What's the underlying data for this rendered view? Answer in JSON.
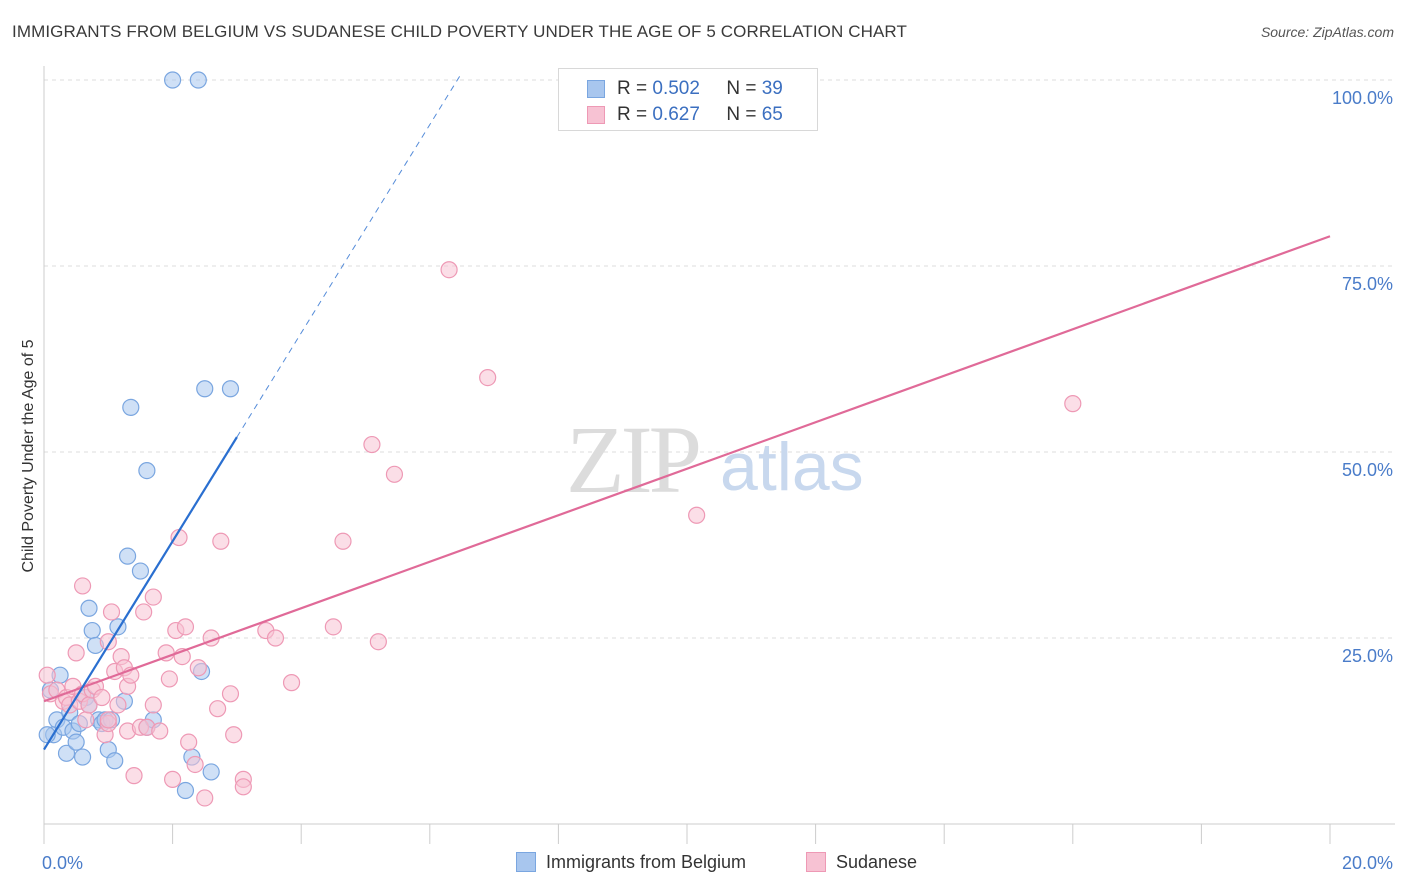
{
  "title": "IMMIGRANTS FROM BELGIUM VS SUDANESE CHILD POVERTY UNDER THE AGE OF 5 CORRELATION CHART",
  "source": "Source: ZipAtlas.com",
  "watermark": {
    "zip": "ZIP",
    "atlas": "atlas"
  },
  "legend": {
    "r_label": "R =",
    "n_label": "N =",
    "rows": [
      {
        "r": "0.502",
        "n": "39"
      },
      {
        "r": "0.627",
        "n": "65"
      }
    ]
  },
  "colors": {
    "belgium_fill": "#a8c6ee",
    "belgium_stroke": "#7aa6e0",
    "belgium_line": "#2a6fd0",
    "sudanese_fill": "#f7c2d3",
    "sudanese_stroke": "#ee99b5",
    "sudanese_line": "#e06a98",
    "tick_text": "#4a7cc9",
    "grid": "#dcdcdc"
  },
  "chart_data": {
    "type": "scatter",
    "title": "IMMIGRANTS FROM BELGIUM VS SUDANESE CHILD POVERTY UNDER THE AGE OF 5 CORRELATION CHART",
    "xlabel": "",
    "ylabel": "Child Poverty Under the Age of 5",
    "xlim": [
      0,
      20
    ],
    "ylim": [
      0,
      100
    ],
    "x_tick_labels": [
      "0.0%",
      "20.0%"
    ],
    "y_tick_labels": [
      "100.0%",
      "75.0%",
      "50.0%",
      "25.0%"
    ],
    "y_ticks": [
      100,
      75,
      50,
      25
    ],
    "x_minor_ticks": [
      0,
      2,
      4,
      6,
      8,
      10,
      12,
      14,
      16,
      18,
      20
    ],
    "grid": true,
    "series": [
      {
        "name": "Immigrants from Belgium",
        "r": 0.502,
        "n": 39,
        "trend": {
          "x": [
            0.0,
            3.0
          ],
          "y": [
            10.0,
            52.0
          ],
          "dash_to": [
            6.5,
            101
          ]
        },
        "points": [
          [
            0.1,
            18.0
          ],
          [
            0.15,
            12.0
          ],
          [
            0.2,
            14.0
          ],
          [
            0.25,
            20.0
          ],
          [
            0.3,
            13.0
          ],
          [
            0.35,
            9.5
          ],
          [
            0.4,
            15.0
          ],
          [
            0.45,
            12.5
          ],
          [
            0.5,
            11.0
          ],
          [
            0.55,
            13.5
          ],
          [
            0.6,
            9.0
          ],
          [
            0.65,
            17.0
          ],
          [
            0.7,
            16.0
          ],
          [
            0.7,
            29.0
          ],
          [
            0.75,
            26.0
          ],
          [
            0.8,
            24.0
          ],
          [
            0.85,
            14.0
          ],
          [
            0.9,
            13.5
          ],
          [
            0.95,
            14.0
          ],
          [
            1.0,
            10.0
          ],
          [
            1.1,
            8.5
          ],
          [
            1.15,
            26.5
          ],
          [
            1.25,
            16.5
          ],
          [
            1.3,
            36.0
          ],
          [
            1.35,
            56.0
          ],
          [
            1.5,
            34.0
          ],
          [
            1.6,
            13.0
          ],
          [
            1.6,
            47.5
          ],
          [
            1.7,
            14.0
          ],
          [
            2.0,
            100
          ],
          [
            2.2,
            4.5
          ],
          [
            2.3,
            9.0
          ],
          [
            2.4,
            100
          ],
          [
            2.45,
            20.5
          ],
          [
            2.5,
            58.5
          ],
          [
            2.6,
            7.0
          ],
          [
            2.9,
            58.5
          ],
          [
            0.05,
            12.0
          ],
          [
            1.05,
            14.0
          ]
        ]
      },
      {
        "name": "Sudanese",
        "r": 0.627,
        "n": 65,
        "trend": {
          "x": [
            0.0,
            20.0
          ],
          "y": [
            16.5,
            79.0
          ]
        },
        "points": [
          [
            0.05,
            20.0
          ],
          [
            0.1,
            17.5
          ],
          [
            0.2,
            18.0
          ],
          [
            0.3,
            16.5
          ],
          [
            0.35,
            17.0
          ],
          [
            0.4,
            16.0
          ],
          [
            0.45,
            18.5
          ],
          [
            0.5,
            23.0
          ],
          [
            0.55,
            16.5
          ],
          [
            0.6,
            17.5
          ],
          [
            0.6,
            32.0
          ],
          [
            0.65,
            14.0
          ],
          [
            0.7,
            16.0
          ],
          [
            0.75,
            18.0
          ],
          [
            0.8,
            18.5
          ],
          [
            0.9,
            17.0
          ],
          [
            0.95,
            12.0
          ],
          [
            1.0,
            24.5
          ],
          [
            1.0,
            13.5
          ],
          [
            1.05,
            28.5
          ],
          [
            1.1,
            20.5
          ],
          [
            1.15,
            16.0
          ],
          [
            1.2,
            22.5
          ],
          [
            1.25,
            21.0
          ],
          [
            1.3,
            12.5
          ],
          [
            1.3,
            18.5
          ],
          [
            1.35,
            20.0
          ],
          [
            1.4,
            6.5
          ],
          [
            1.5,
            13.0
          ],
          [
            1.55,
            28.5
          ],
          [
            1.6,
            13.0
          ],
          [
            1.7,
            30.5
          ],
          [
            1.7,
            16.0
          ],
          [
            1.8,
            12.5
          ],
          [
            1.9,
            23.0
          ],
          [
            1.95,
            19.5
          ],
          [
            2.0,
            6.0
          ],
          [
            2.05,
            26.0
          ],
          [
            2.1,
            38.5
          ],
          [
            2.15,
            22.5
          ],
          [
            2.2,
            26.5
          ],
          [
            2.25,
            11.0
          ],
          [
            2.35,
            8.0
          ],
          [
            2.4,
            21.0
          ],
          [
            2.5,
            3.5
          ],
          [
            2.6,
            25.0
          ],
          [
            2.7,
            15.5
          ],
          [
            2.75,
            38.0
          ],
          [
            2.9,
            17.5
          ],
          [
            2.95,
            12.0
          ],
          [
            3.1,
            6.0
          ],
          [
            3.1,
            5.0
          ],
          [
            3.45,
            26.0
          ],
          [
            3.6,
            25.0
          ],
          [
            3.85,
            19.0
          ],
          [
            4.5,
            26.5
          ],
          [
            4.65,
            38.0
          ],
          [
            5.1,
            51.0
          ],
          [
            5.2,
            24.5
          ],
          [
            5.45,
            47.0
          ],
          [
            6.3,
            74.5
          ],
          [
            6.9,
            60.0
          ],
          [
            10.15,
            41.5
          ],
          [
            16.0,
            56.5
          ],
          [
            1.0,
            14.0
          ]
        ]
      }
    ]
  }
}
